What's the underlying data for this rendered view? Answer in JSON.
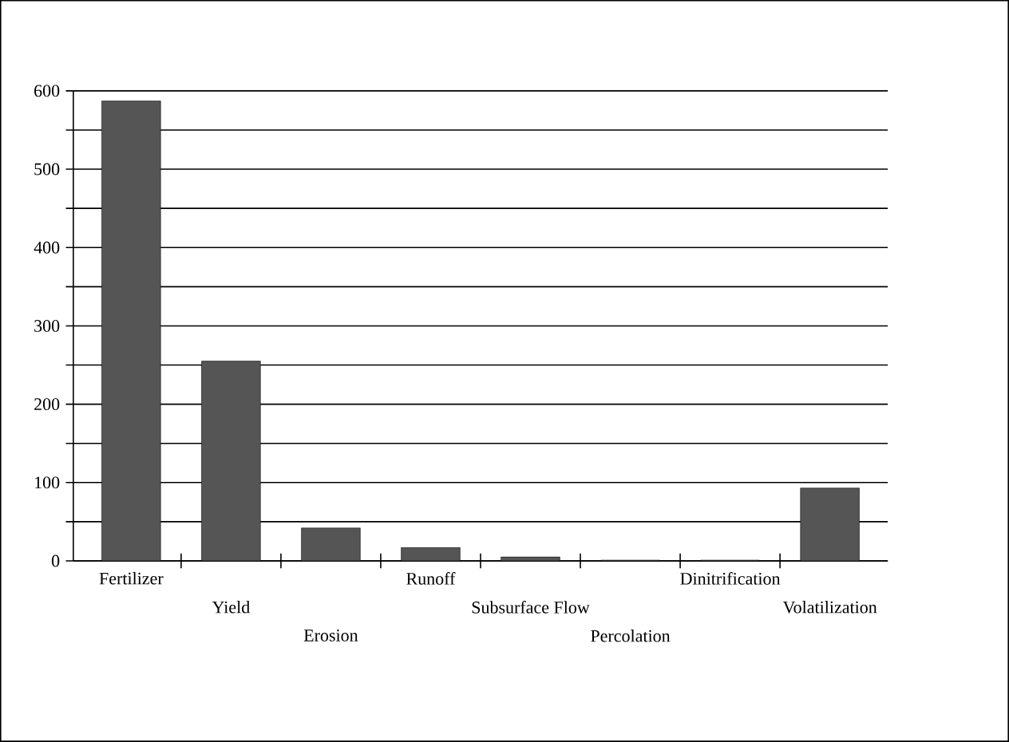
{
  "chart_data": {
    "type": "bar",
    "categories": [
      "Fertilizer",
      "Yield",
      "Erosion",
      "Runoff",
      "Subsurface Flow",
      "Percolation",
      "Dinitrification",
      "Volatilization"
    ],
    "values": [
      587,
      255,
      42,
      17,
      5,
      1,
      1,
      93
    ],
    "color": "#555555",
    "ylim": [
      0,
      600
    ],
    "yticks": [
      0,
      {
        "value": 50,
        "label": null
      },
      100,
      {
        "value": 150,
        "label": null
      },
      200,
      {
        "value": 250,
        "label": null
      },
      300,
      {
        "value": 350,
        "label": null
      },
      400,
      {
        "value": 450,
        "label": null
      },
      500,
      {
        "value": 550,
        "label": null
      },
      600
    ],
    "grid": "y"
  }
}
